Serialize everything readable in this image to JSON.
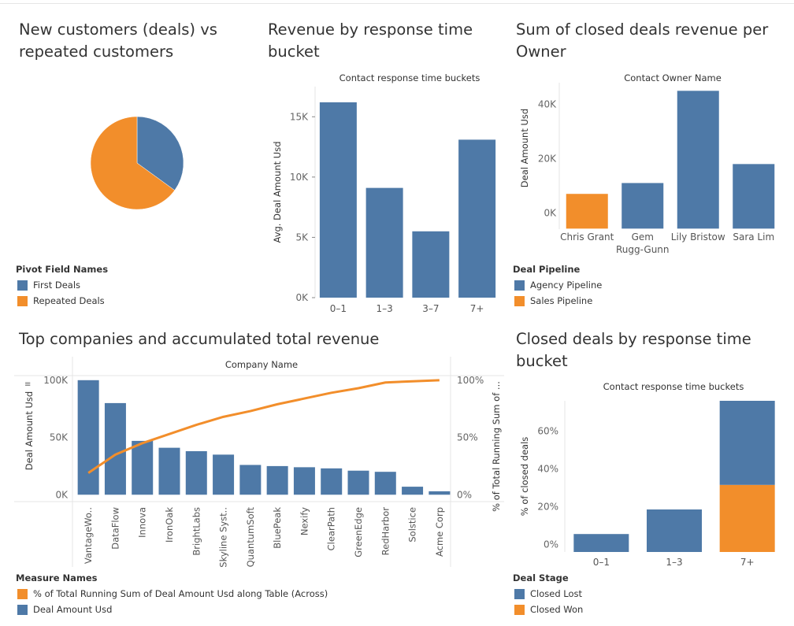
{
  "colors": {
    "blue": "#4e79a7",
    "orange": "#f28e2b"
  },
  "charts": {
    "pie": {
      "title": "New customers (deals) vs repeated customers",
      "legend_title": "Pivot Field Names",
      "legend": [
        "First Deals",
        "Repeated Deals"
      ]
    },
    "resp": {
      "title": "Revenue by response time bucket",
      "header": "Contact response time buckets",
      "ylabel": "Avg. Deal Amount Usd",
      "ticks": [
        "0K",
        "5K",
        "10K",
        "15K"
      ]
    },
    "owner": {
      "title": "Sum of closed deals revenue per Owner",
      "header": "Contact Owner Name",
      "ylabel": "Deal Amount Usd",
      "ticks": [
        "0K",
        "20K",
        "40K"
      ],
      "legend_title": "Deal Pipeline",
      "legend": [
        "Agency Pipeline",
        "Sales Pipeline"
      ]
    },
    "pareto": {
      "title": "Top companies and accumulated total revenue",
      "header": "Company Name",
      "ylabel": "Deal Amount Usd",
      "y2label": "% of Total Running Sum of ...",
      "ticks": [
        "0K",
        "50K",
        "100K"
      ],
      "ticks2": [
        "0%",
        "50%",
        "100%"
      ],
      "legend_title": "Measure Names",
      "legend": [
        "% of Total Running Sum of Deal Amount Usd along Table (Across)",
        "Deal Amount Usd"
      ]
    },
    "closed": {
      "title": "Closed deals by response time bucket",
      "header": "Contact response time buckets",
      "ylabel": "% of closed deals",
      "ticks": [
        "0%",
        "20%",
        "40%",
        "60%"
      ],
      "legend_title": "Deal Stage",
      "legend": [
        "Closed Lost",
        "Closed Won"
      ]
    }
  },
  "chart_data": [
    {
      "type": "pie",
      "title": "New customers (deals) vs repeated customers",
      "series": [
        {
          "name": "First Deals",
          "value": 35
        },
        {
          "name": "Repeated Deals",
          "value": 65
        }
      ]
    },
    {
      "type": "bar",
      "title": "Revenue by response time bucket",
      "xlabel": "Contact response time buckets",
      "ylabel": "Avg. Deal Amount Usd",
      "categories": [
        "0–1",
        "1–3",
        "3–7",
        "7+"
      ],
      "values": [
        16200,
        9100,
        5500,
        13100
      ],
      "ylim": [
        0,
        17500
      ]
    },
    {
      "type": "bar",
      "title": "Sum of closed deals revenue per Owner",
      "xlabel": "Contact Owner Name",
      "ylabel": "Deal Amount Usd",
      "categories": [
        "Chris Grant",
        "Gem Rugg-Gunn",
        "Lily Bristow",
        "Sara Lim"
      ],
      "series": [
        {
          "name": "Agency Pipeline",
          "values": [
            0,
            11000,
            45000,
            18000
          ]
        },
        {
          "name": "Sales Pipeline",
          "values": [
            7000,
            0,
            0,
            0
          ]
        }
      ],
      "ylim": [
        -6000,
        48000
      ]
    },
    {
      "type": "bar",
      "title": "Top companies and accumulated total revenue",
      "xlabel": "Company Name",
      "ylabel": "Deal Amount Usd",
      "y2label": "% of Total Running Sum of ...",
      "categories": [
        "VantageWo..",
        "DataFlow",
        "Innova",
        "IronOak",
        "BrightLabs",
        "Skyline Syst..",
        "QuantumSoft",
        "BluePeak",
        "Nexify",
        "ClearPath",
        "GreenEdge",
        "RedHarbor",
        "Solstice",
        "Acme Corp"
      ],
      "series": [
        {
          "name": "Deal Amount Usd",
          "values": [
            100000,
            80000,
            47000,
            41000,
            38000,
            35000,
            26000,
            25000,
            24000,
            23000,
            21000,
            20000,
            7000,
            3000
          ]
        },
        {
          "name": "% of Total Running Sum of Deal Amount Usd along Table (Across)",
          "values": [
            19,
            35,
            45,
            53,
            61,
            68,
            73,
            79,
            84,
            89,
            93,
            98,
            99,
            100
          ]
        }
      ],
      "ylim": [
        -6000,
        104000
      ],
      "y2lim": [
        -6,
        104
      ]
    },
    {
      "type": "bar",
      "title": "Closed deals by response time bucket",
      "xlabel": "Contact response time buckets",
      "ylabel": "% of closed deals",
      "categories": [
        "0–1",
        "1–3",
        "7+"
      ],
      "series": [
        {
          "name": "Closed Lost",
          "values": [
            5.5,
            18.5,
            44.5
          ]
        },
        {
          "name": "Closed Won",
          "values": [
            0,
            0,
            31.5
          ]
        }
      ],
      "ylim": [
        -4,
        76
      ]
    }
  ]
}
